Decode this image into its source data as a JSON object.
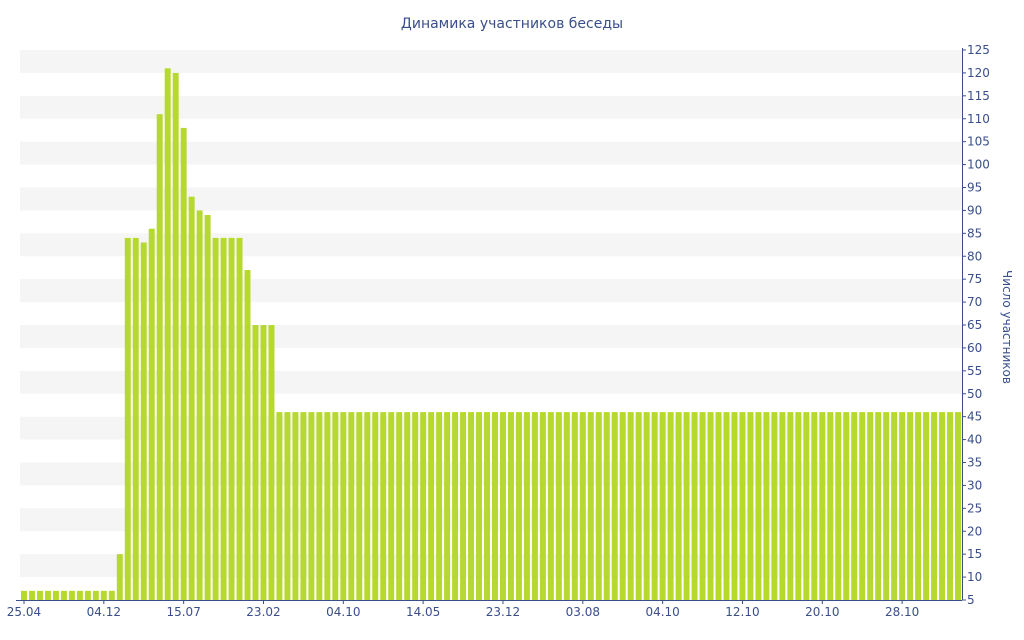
{
  "chart_data": {
    "type": "bar",
    "title": "Динамика участников беседы",
    "xlabel": "",
    "ylabel": "Число участников",
    "ylim": [
      5,
      125
    ],
    "y_tick_step": 5,
    "y_axis_position": "right",
    "grid": "horizontal bands",
    "legend": "none",
    "bar_color": "#b6d92e",
    "band_color": "#f5f5f5",
    "axis_color": "#3a4f8a",
    "x_tick_labels": [
      "25.04",
      "04.12",
      "15.07",
      "23.02",
      "04.10",
      "14.05",
      "23.12",
      "03.08",
      "04.10",
      "12.10",
      "20.10",
      "28.10"
    ],
    "x_tick_bar_index": [
      0,
      10,
      20,
      30,
      40,
      50,
      60,
      70,
      80,
      90,
      100,
      110
    ],
    "values": [
      7,
      7,
      7,
      7,
      7,
      7,
      7,
      7,
      7,
      7,
      7,
      7,
      15,
      84,
      84,
      83,
      86,
      111,
      121,
      120,
      108,
      93,
      90,
      89,
      84,
      84,
      84,
      84,
      77,
      65,
      65,
      65,
      46,
      46,
      46,
      46,
      46,
      46,
      46,
      46,
      46,
      46,
      46,
      46,
      46,
      46,
      46,
      46,
      46,
      46,
      46,
      46,
      46,
      46,
      46,
      46,
      46,
      46,
      46,
      46,
      46,
      46,
      46,
      46,
      46,
      46,
      46,
      46,
      46,
      46,
      46,
      46,
      46,
      46,
      46,
      46,
      46,
      46,
      46,
      46,
      46,
      46,
      46,
      46,
      46,
      46,
      46,
      46,
      46,
      46,
      46,
      46,
      46,
      46,
      46,
      46,
      46,
      46,
      46,
      46,
      46,
      46,
      46,
      46,
      46,
      46,
      46,
      46,
      46,
      46,
      46,
      46,
      46,
      46,
      46,
      46,
      46,
      46
    ]
  }
}
